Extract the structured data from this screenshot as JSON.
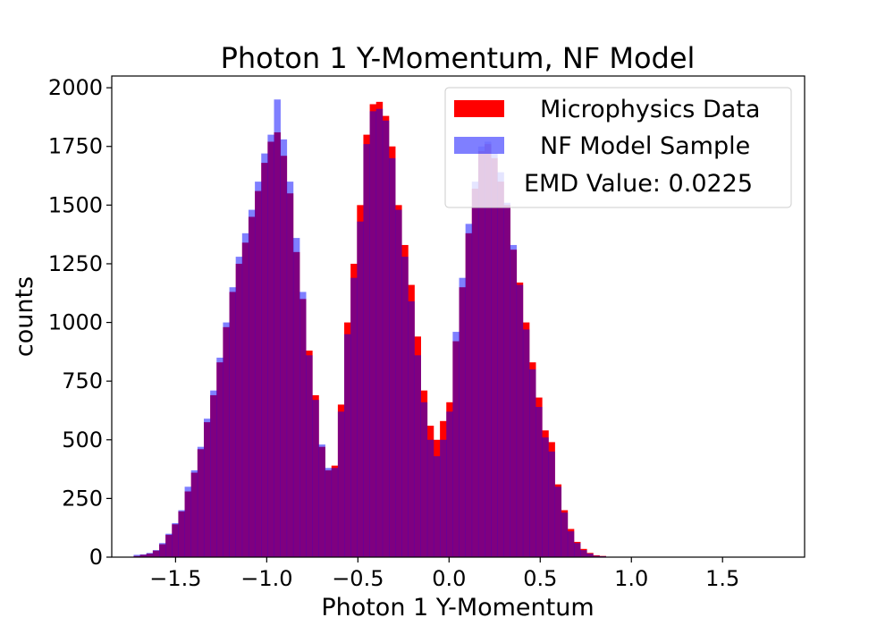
{
  "chart_data": {
    "type": "bar",
    "title": "Photon 1 Y-Momentum, NF Model",
    "xlabel": "Photon 1 Y-Momentum",
    "ylabel": "counts",
    "xlim": [
      -1.85,
      1.95
    ],
    "ylim": [
      0,
      2050
    ],
    "xticks": [
      -1.5,
      -1.0,
      -0.5,
      0.0,
      0.5,
      1.0,
      1.5
    ],
    "xtick_labels": [
      "−1.5",
      "−1.0",
      "−0.5",
      "0.0",
      "0.5",
      "1.0",
      "1.5"
    ],
    "yticks": [
      0,
      250,
      500,
      750,
      1000,
      1250,
      1500,
      1750,
      2000
    ],
    "ytick_labels": [
      "0",
      "250",
      "500",
      "750",
      "1000",
      "1250",
      "1500",
      "1750",
      "2000"
    ],
    "legend_position": "top-right",
    "bins_start": -1.73,
    "bin_width": 0.035,
    "annotation": "EMD Value: 0.0225",
    "series": [
      {
        "name": "Microphysics Data",
        "color": "#ff0000",
        "opacity": 1.0,
        "values": [
          5,
          10,
          15,
          28,
          55,
          95,
          140,
          195,
          280,
          360,
          460,
          575,
          690,
          830,
          980,
          1130,
          1250,
          1340,
          1450,
          1560,
          1680,
          1770,
          1810,
          1710,
          1550,
          1300,
          1100,
          880,
          690,
          470,
          370,
          390,
          650,
          1000,
          1250,
          1500,
          1800,
          1930,
          1940,
          1880,
          1750,
          1500,
          1330,
          1160,
          940,
          710,
          560,
          500,
          580,
          660,
          920,
          1150,
          1380,
          1570,
          1730,
          1760,
          1700,
          1600,
          1500,
          1310,
          1170,
          1000,
          830,
          680,
          540,
          490,
          310,
          200,
          120,
          65,
          35,
          18,
          8,
          5
        ]
      },
      {
        "name": "NF Model Sample",
        "color": "#0000ff",
        "opacity": 0.5,
        "values": [
          10,
          12,
          18,
          30,
          60,
          100,
          145,
          200,
          300,
          370,
          470,
          590,
          710,
          850,
          1000,
          1150,
          1280,
          1380,
          1480,
          1600,
          1720,
          1800,
          1950,
          1780,
          1600,
          1360,
          1130,
          860,
          670,
          480,
          380,
          380,
          620,
          950,
          1190,
          1430,
          1760,
          1900,
          1910,
          1860,
          1700,
          1480,
          1280,
          1090,
          860,
          660,
          500,
          430,
          500,
          620,
          960,
          1190,
          1420,
          1600,
          1750,
          1770,
          1720,
          1640,
          1510,
          1330,
          1160,
          970,
          800,
          640,
          510,
          450,
          300,
          190,
          110,
          60,
          30,
          15,
          6,
          4
        ]
      }
    ]
  }
}
